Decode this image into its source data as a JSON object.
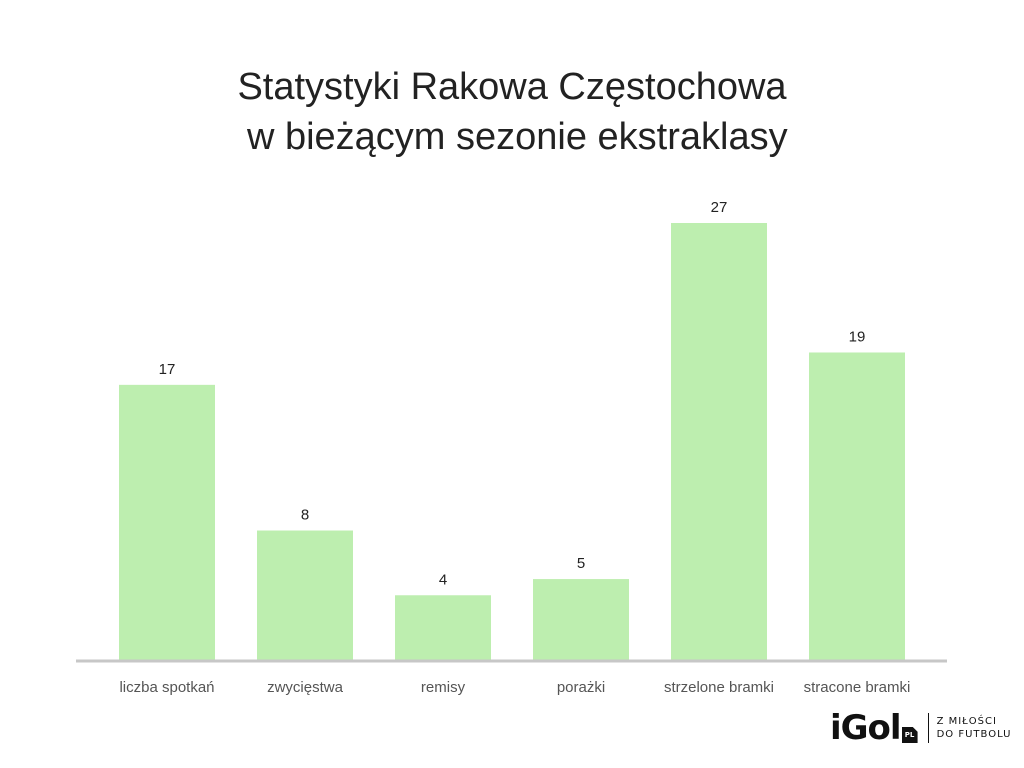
{
  "chart_data": {
    "type": "bar",
    "title": "Statystyki Rakowa Częstochowa\n w bieżącym sezonie ekstraklasy",
    "title_lines": [
      "Statystyki Rakowa Częstochowa",
      " w bieżącym sezonie ekstraklasy"
    ],
    "categories": [
      "liczba spotkań",
      "zwycięstwa",
      "remisy",
      "porażki",
      "strzelone bramki",
      "stracone bramki"
    ],
    "values": [
      17,
      8,
      4,
      5,
      27,
      19
    ],
    "xlabel": "",
    "ylabel": "",
    "ylim": [
      0,
      27
    ],
    "grid": false,
    "legend": "none",
    "bar_color": "#bdeeaf",
    "axis_color": "#c7c7c7",
    "label_color": "#222222",
    "category_color": "#555555"
  },
  "branding": {
    "wordmark": "iGol",
    "badge": "PL",
    "tagline_lines": [
      "Z MIŁOŚCI",
      "DO FUTBOLU"
    ]
  }
}
